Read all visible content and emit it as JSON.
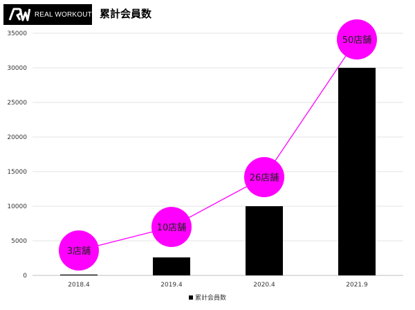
{
  "header": {
    "brand_name": "REAL WORKOUT",
    "logo_icon": "rw-logo-icon"
  },
  "chart_data": {
    "type": "bar",
    "title": "累計会員数",
    "categories": [
      "2018.4",
      "2019.4",
      "2020.4",
      "2021.9"
    ],
    "series": [
      {
        "name": "累計会員数",
        "values": [
          120,
          2600,
          10000,
          30000
        ],
        "color": "#000000"
      }
    ],
    "ylim": [
      0,
      35000
    ],
    "yticks": [
      0,
      5000,
      10000,
      15000,
      20000,
      25000,
      30000,
      35000
    ],
    "grid": true,
    "legend_position": "bottom",
    "annotations": {
      "type": "line",
      "color": "#ff00ff",
      "labels": [
        "3店舗",
        "10店舗",
        "26店舗",
        "50店舗"
      ],
      "values": [
        3600,
        7000,
        14200,
        34100
      ]
    }
  }
}
